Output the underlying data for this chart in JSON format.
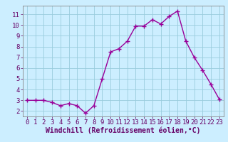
{
  "x": [
    0,
    1,
    2,
    3,
    4,
    5,
    6,
    7,
    8,
    9,
    10,
    11,
    12,
    13,
    14,
    15,
    16,
    17,
    18,
    19,
    20,
    21,
    22,
    23
  ],
  "y": [
    3.0,
    3.0,
    3.0,
    2.8,
    2.5,
    2.7,
    2.5,
    1.8,
    2.5,
    5.0,
    7.5,
    7.8,
    8.5,
    9.9,
    9.9,
    10.5,
    10.1,
    10.8,
    11.3,
    8.5,
    7.0,
    5.8,
    4.5,
    3.1
  ],
  "line_color": "#990099",
  "marker": "+",
  "markersize": 4,
  "linewidth": 1.0,
  "markeredgewidth": 1.0,
  "xlabel": "Windchill (Refroidissement éolien,°C)",
  "xlim": [
    -0.5,
    23.5
  ],
  "ylim": [
    1.5,
    11.8
  ],
  "yticks": [
    2,
    3,
    4,
    5,
    6,
    7,
    8,
    9,
    10,
    11
  ],
  "xticks": [
    0,
    1,
    2,
    3,
    4,
    5,
    6,
    7,
    8,
    9,
    10,
    11,
    12,
    13,
    14,
    15,
    16,
    17,
    18,
    19,
    20,
    21,
    22,
    23
  ],
  "bg_color": "#cceeff",
  "grid_color": "#99ccdd",
  "label_fontsize": 7,
  "tick_fontsize": 6.5
}
